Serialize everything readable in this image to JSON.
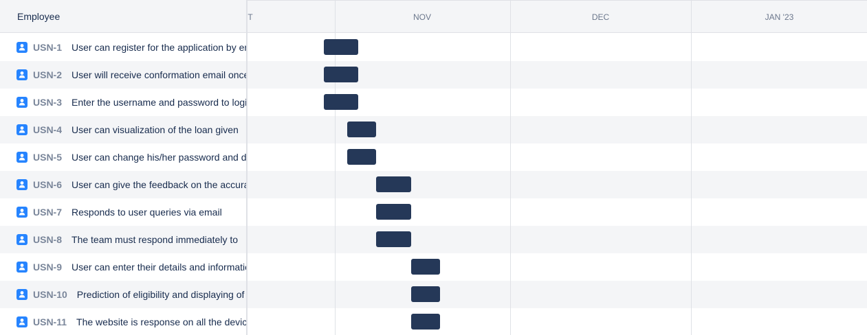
{
  "left": {
    "header_title": "Employee",
    "rows": [
      {
        "key": "USN-1",
        "summary": "User can register for the application by entering"
      },
      {
        "key": "USN-2",
        "summary": "User will receive conformation email once"
      },
      {
        "key": "USN-3",
        "summary": "Enter the username and password to login"
      },
      {
        "key": "USN-4",
        "summary": "User can visualization of the loan given"
      },
      {
        "key": "USN-5",
        "summary": "User can change his/her password and details"
      },
      {
        "key": "USN-6",
        "summary": "User can give the feedback on the accuracy"
      },
      {
        "key": "USN-7",
        "summary": "Responds to user queries via email"
      },
      {
        "key": "USN-8",
        "summary": "The team must respond immediately to"
      },
      {
        "key": "USN-9",
        "summary": "User can enter their details and information"
      },
      {
        "key": "USN-10",
        "summary": "Prediction of eligibility and displaying of"
      },
      {
        "key": "USN-11",
        "summary": "The website is response on all the devices"
      }
    ]
  },
  "timeline": {
    "months": [
      "T",
      "NOV",
      "DEC",
      "JAN '23"
    ]
  },
  "colors": {
    "bar": "#253858",
    "story_icon": "#2684ff"
  },
  "icons": {
    "row_icon": "story-icon"
  }
}
